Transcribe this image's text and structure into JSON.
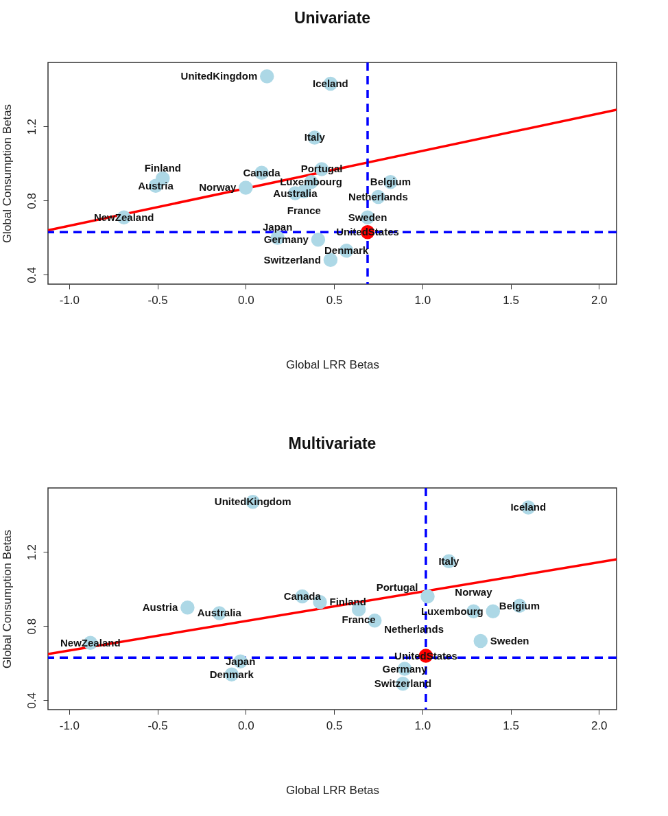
{
  "chart_data": [
    {
      "type": "scatter",
      "title": "Univariate",
      "xlabel": "Global LRR Betas",
      "ylabel": "Global Consumption Betas",
      "xlim": [
        -1.12,
        2.1
      ],
      "ylim": [
        0.35,
        1.545
      ],
      "xticks": [
        {
          "value": -1,
          "label": "-1.0"
        },
        -0.5,
        {
          "value": 0,
          "label": "0.0"
        },
        0.5,
        {
          "value": 1,
          "label": "1.0"
        },
        1.5,
        {
          "value": 2,
          "label": "2.0"
        }
      ],
      "yticks": [
        0.4,
        0.8,
        1.2
      ],
      "grid": false,
      "legend": false,
      "marker": "circle",
      "series": [
        {
          "type": "scatter",
          "x": [
            0.28,
            -0.51,
            0.82,
            0.09,
            0.57,
            -0.47,
            0.33,
            0.41,
            0.48,
            0.39,
            0.18,
            0.37,
            0.75,
            -0.69,
            0.0,
            0.43,
            0.69,
            0.48,
            0.12,
            0.69
          ],
          "values": [
            0.84,
            0.88,
            0.9,
            0.95,
            0.53,
            0.92,
            0.85,
            0.59,
            1.43,
            1.14,
            0.6,
            0.9,
            0.82,
            0.71,
            0.87,
            0.97,
            0.71,
            0.48,
            1.47,
            0.63
          ],
          "colors": [
            "#add8e6",
            "#add8e6",
            "#add8e6",
            "#add8e6",
            "#add8e6",
            "#add8e6",
            "#add8e6",
            "#add8e6",
            "#add8e6",
            "#add8e6",
            "#add8e6",
            "#add8e6",
            "#add8e6",
            "#add8e6",
            "#add8e6",
            "#add8e6",
            "#add8e6",
            "#add8e6",
            "#add8e6",
            "#ff0000"
          ],
          "value_labels": [
            "Australia",
            "Austria",
            "Belgium",
            "Canada",
            "Denmark",
            "Finland",
            "France",
            "Germany",
            "Iceland",
            "Italy",
            "Japan",
            "Luxembourg",
            "Netherlands",
            "NewZealand",
            "Norway",
            "Portugal",
            "Sweden",
            "Switzerland",
            "UnitedKingdom",
            "UnitedStates"
          ]
        },
        {
          "type": "line",
          "x": [
            -1.12,
            2.1
          ],
          "values": [
            0.64,
            1.29
          ],
          "color": "#ff0000",
          "marker": "none"
        }
      ],
      "ref_lines": [
        {
          "axis": "x",
          "value": 0.69,
          "color": "#0000ff",
          "line_style": "dashed"
        },
        {
          "axis": "y",
          "value": 0.63,
          "color": "#0000ff",
          "line_style": "dashed"
        }
      ]
    },
    {
      "type": "scatter",
      "title": "Multivariate",
      "xlabel": "Global LRR Betas",
      "ylabel": "Global Consumption Betas",
      "xlim": [
        -1.12,
        2.1
      ],
      "ylim": [
        0.35,
        1.545
      ],
      "xticks": [
        {
          "value": -1,
          "label": "-1.0"
        },
        -0.5,
        {
          "value": 0,
          "label": "0.0"
        },
        0.5,
        {
          "value": 1,
          "label": "1.0"
        },
        1.5,
        {
          "value": 2,
          "label": "2.0"
        }
      ],
      "yticks": [
        0.4,
        0.8,
        1.2
      ],
      "grid": false,
      "legend": false,
      "marker": "circle",
      "series": [
        {
          "type": "scatter",
          "x": [
            -0.15,
            -0.33,
            1.55,
            0.32,
            -0.08,
            0.42,
            0.64,
            0.9,
            1.6,
            1.15,
            -0.03,
            1.4,
            0.73,
            -0.88,
            1.29,
            1.03,
            1.33,
            0.89,
            0.04,
            1.02
          ],
          "values": [
            0.87,
            0.9,
            0.91,
            0.96,
            0.54,
            0.93,
            0.89,
            0.57,
            1.44,
            1.15,
            0.61,
            0.88,
            0.83,
            0.71,
            0.88,
            0.96,
            0.72,
            0.49,
            1.47,
            0.64
          ],
          "colors": [
            "#add8e6",
            "#add8e6",
            "#add8e6",
            "#add8e6",
            "#add8e6",
            "#add8e6",
            "#add8e6",
            "#add8e6",
            "#add8e6",
            "#add8e6",
            "#add8e6",
            "#add8e6",
            "#add8e6",
            "#add8e6",
            "#add8e6",
            "#add8e6",
            "#add8e6",
            "#add8e6",
            "#add8e6",
            "#ff0000"
          ],
          "value_labels": [
            "Australia",
            "Austria",
            "Belgium",
            "Canada",
            "Denmark",
            "Finland",
            "France",
            "Germany",
            "Iceland",
            "Italy",
            "Japan",
            "Luxembourg",
            "Netherlands",
            "NewZealand",
            "Norway",
            "Portugal",
            "Sweden",
            "Switzerland",
            "UnitedKingdom",
            "UnitedStates"
          ]
        },
        {
          "type": "line",
          "x": [
            -1.12,
            2.1
          ],
          "values": [
            0.65,
            1.16
          ],
          "color": "#ff0000",
          "marker": "none"
        }
      ],
      "ref_lines": [
        {
          "axis": "x",
          "value": 1.02,
          "color": "#0000ff",
          "line_style": "dashed"
        },
        {
          "axis": "y",
          "value": 0.63,
          "color": "#0000ff",
          "line_style": "dashed"
        }
      ]
    }
  ]
}
